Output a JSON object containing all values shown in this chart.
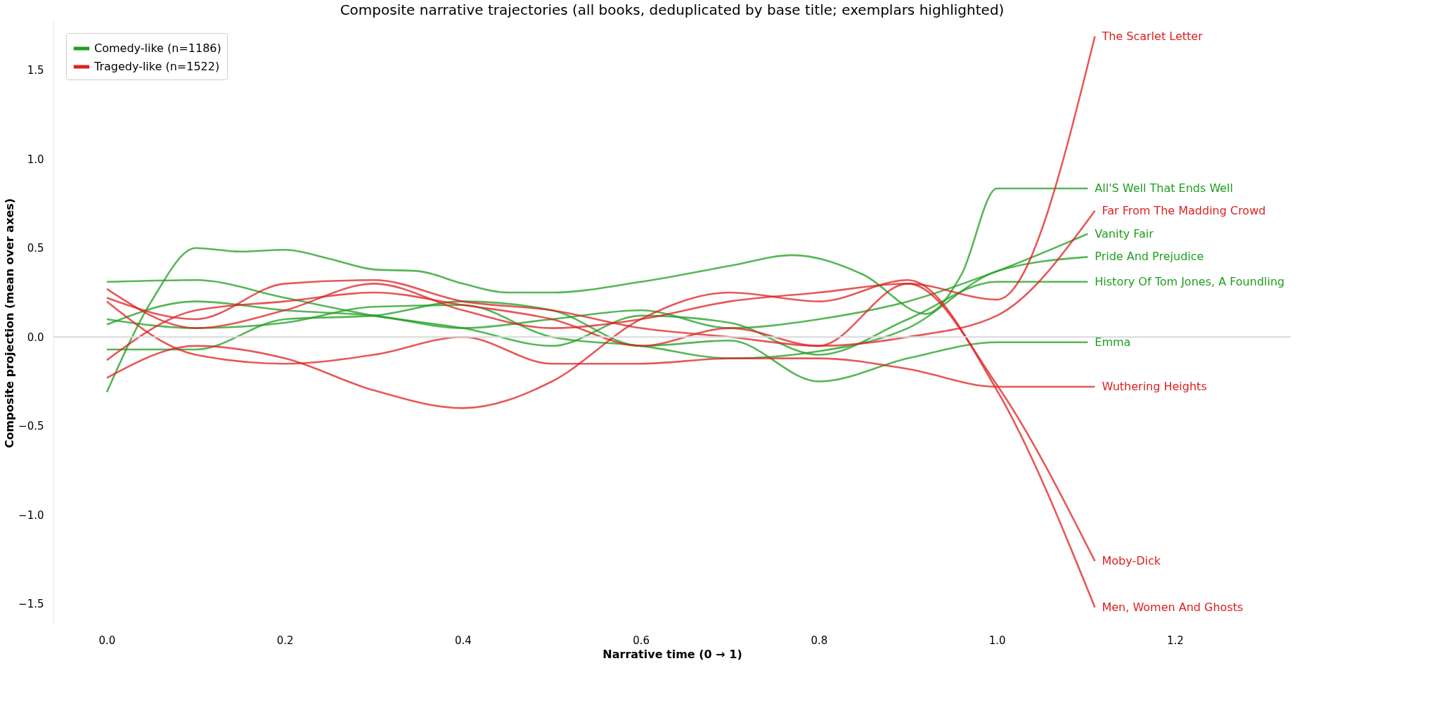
{
  "chart_data": {
    "type": "line",
    "title": "Composite narrative trajectories (all books, deduplicated by base title; exemplars highlighted)",
    "xlabel": "Narrative time (0 → 1)",
    "ylabel": "Composite projection (mean over axes)",
    "xlim": [
      -0.06,
      1.33
    ],
    "ylim": [
      -1.62,
      1.78
    ],
    "xticks": [
      {
        "value": 0,
        "label": "0.0"
      },
      0.2,
      0.4,
      0.6,
      0.8,
      {
        "value": 1,
        "label": "1.0"
      },
      1.2
    ],
    "yticks": [
      {
        "value": -1.5,
        "label": "−1.5"
      },
      {
        "value": -1,
        "label": "−1.0"
      },
      {
        "value": -0.5,
        "label": "−0.5"
      },
      {
        "value": 0,
        "label": "0.0"
      },
      0.5,
      {
        "value": 1,
        "label": "1.0"
      },
      1.5
    ],
    "grid": false,
    "legend": "top left",
    "line_style": "solid",
    "marker": "none",
    "ref_lines": [
      {
        "axis": "y",
        "value": 0,
        "color": "#d9d9d9"
      }
    ],
    "series": [
      {
        "name": "Comedy-like (n=1186)",
        "color": "#1f9e1f"
      },
      {
        "name": "Tragedy-like (n=1522)",
        "color": "#dd2020"
      },
      {
        "name": "All'S Well That Ends Well",
        "color": "#1f9e1f",
        "x": [
          0,
          0.05,
          0.1,
          0.15,
          0.2,
          0.25,
          0.3,
          0.35,
          0.4,
          0.45,
          0.5,
          0.6,
          0.7,
          0.77,
          0.85,
          0.92,
          0.96,
          1.0,
          1.102
        ],
        "values": [
          -0.31,
          0.2,
          0.5,
          0.48,
          0.49,
          0.44,
          0.38,
          0.37,
          0.3,
          0.25,
          0.25,
          0.31,
          0.4,
          0.46,
          0.35,
          0.13,
          0.35,
          0.835,
          0.835
        ]
      },
      {
        "name": "Vanity Fair",
        "color": "#1f9e1f",
        "x": [
          0,
          0.1,
          0.2,
          0.3,
          0.4,
          0.5,
          0.6,
          0.7,
          0.8,
          0.9,
          1.0,
          1.102
        ],
        "values": [
          0.07,
          0.2,
          0.15,
          0.12,
          0.05,
          0.1,
          0.15,
          0.05,
          0.1,
          0.2,
          0.37,
          0.58
        ]
      },
      {
        "name": "Pride And Prejudice",
        "color": "#1f9e1f",
        "x": [
          0,
          0.1,
          0.2,
          0.3,
          0.4,
          0.5,
          0.6,
          0.7,
          0.8,
          0.9,
          1.0,
          1.102
        ],
        "values": [
          0.1,
          0.05,
          0.08,
          0.17,
          0.18,
          0.0,
          -0.05,
          -0.12,
          -0.08,
          0.05,
          0.37,
          0.45
        ]
      },
      {
        "name": "History Of Tom Jones, A Foundling",
        "color": "#1f9e1f",
        "x": [
          0,
          0.1,
          0.2,
          0.3,
          0.4,
          0.5,
          0.6,
          0.7,
          0.8,
          0.9,
          1.0,
          1.102
        ],
        "values": [
          0.31,
          0.32,
          0.22,
          0.12,
          0.05,
          -0.05,
          0.12,
          0.08,
          -0.1,
          0.1,
          0.31,
          0.31
        ]
      },
      {
        "name": "Emma",
        "color": "#1f9e1f",
        "x": [
          0,
          0.1,
          0.2,
          0.3,
          0.4,
          0.5,
          0.6,
          0.7,
          0.8,
          0.9,
          1.0,
          1.102
        ],
        "values": [
          -0.07,
          -0.07,
          0.1,
          0.12,
          0.2,
          0.15,
          -0.05,
          -0.02,
          -0.25,
          -0.12,
          -0.03,
          -0.03
        ]
      },
      {
        "name": "The Scarlet Letter",
        "color": "#dd2020",
        "x": [
          0,
          0.1,
          0.2,
          0.3,
          0.4,
          0.5,
          0.6,
          0.7,
          0.8,
          0.9,
          1.0,
          1.11
        ],
        "values": [
          0.27,
          0.05,
          0.15,
          0.3,
          0.15,
          0.05,
          0.1,
          0.2,
          0.25,
          0.3,
          0.21,
          1.69
        ]
      },
      {
        "name": "Far From The Madding Crowd",
        "color": "#dd2020",
        "x": [
          0,
          0.1,
          0.2,
          0.3,
          0.4,
          0.5,
          0.6,
          0.7,
          0.8,
          0.9,
          1.0,
          1.11
        ],
        "values": [
          -0.13,
          0.15,
          0.2,
          0.25,
          0.18,
          0.1,
          -0.05,
          0.05,
          -0.05,
          0.0,
          0.12,
          0.71
        ]
      },
      {
        "name": "Wuthering Heights",
        "color": "#dd2020",
        "x": [
          0,
          0.1,
          0.2,
          0.3,
          0.4,
          0.5,
          0.6,
          0.7,
          0.8,
          0.9,
          1.0,
          1.11
        ],
        "values": [
          0.2,
          -0.1,
          -0.15,
          -0.1,
          0.0,
          -0.15,
          -0.15,
          -0.12,
          -0.12,
          -0.18,
          -0.28,
          -0.28
        ]
      },
      {
        "name": "Moby-Dick",
        "color": "#dd2020",
        "x": [
          0,
          0.1,
          0.2,
          0.3,
          0.4,
          0.5,
          0.6,
          0.7,
          0.8,
          0.9,
          1.0,
          1.11
        ],
        "values": [
          0.22,
          0.1,
          0.3,
          0.32,
          0.2,
          0.15,
          0.05,
          0.0,
          -0.05,
          0.3,
          -0.27,
          -1.26
        ]
      },
      {
        "name": "Men, Women And Ghosts",
        "color": "#dd2020",
        "x": [
          0,
          0.1,
          0.2,
          0.3,
          0.4,
          0.5,
          0.6,
          0.7,
          0.8,
          0.9,
          1.0,
          1.11
        ],
        "values": [
          -0.23,
          -0.05,
          -0.12,
          -0.3,
          -0.4,
          -0.25,
          0.1,
          0.25,
          0.2,
          0.32,
          -0.3,
          -1.52
        ]
      }
    ]
  }
}
